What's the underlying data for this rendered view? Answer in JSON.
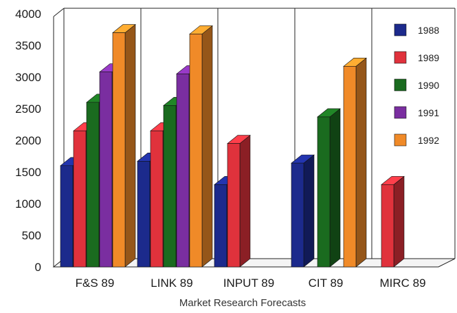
{
  "chart_data": {
    "type": "bar",
    "title": "",
    "xlabel": "Market Research Forecasts",
    "ylabel": "",
    "ylim": [
      0,
      4000
    ],
    "yticks": [
      0,
      500,
      1000,
      1500,
      2000,
      2500,
      3000,
      3500,
      4000
    ],
    "categories": [
      "F&S 89",
      "LINK 89",
      "INPUT 89",
      "CIT 89",
      "MIRC 89"
    ],
    "legend_position": "top-right",
    "grid": "vertical category dividers",
    "series": [
      {
        "name": "1988",
        "color": "#1c2a8c",
        "values": [
          1600,
          1670,
          1300,
          1640,
          null
        ]
      },
      {
        "name": "1989",
        "color": "#e0323c",
        "values": [
          2150,
          2150,
          1950,
          null,
          1300
        ]
      },
      {
        "name": "1990",
        "color": "#1a6b1f",
        "values": [
          2600,
          2550,
          null,
          2370,
          null
        ]
      },
      {
        "name": "1991",
        "color": "#7a2ea0",
        "values": [
          3080,
          3050,
          null,
          null,
          null
        ]
      },
      {
        "name": "1992",
        "color": "#f08a28",
        "values": [
          3700,
          3680,
          null,
          3170,
          null
        ]
      }
    ]
  }
}
